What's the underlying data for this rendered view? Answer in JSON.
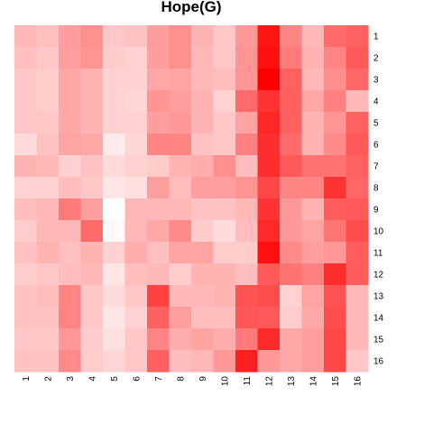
{
  "chart_data": {
    "type": "heatmap",
    "title": "Hope(G)",
    "xlabel": "",
    "ylabel": "",
    "x_labels": [
      "1",
      "2",
      "3",
      "4",
      "5",
      "6",
      "7",
      "8",
      "9",
      "10",
      "11",
      "12",
      "13",
      "14",
      "15",
      "16"
    ],
    "y_labels": [
      "1",
      "2",
      "3",
      "4",
      "5",
      "6",
      "7",
      "8",
      "9",
      "10",
      "11",
      "12",
      "13",
      "14",
      "15",
      "16"
    ],
    "value_range": [
      0,
      1
    ],
    "color_low": "#ffffff",
    "color_high": "#ff0000",
    "legend": "none",
    "grid": false,
    "values": [
      [
        0.28,
        0.25,
        0.38,
        0.44,
        0.22,
        0.24,
        0.38,
        0.44,
        0.3,
        0.22,
        0.4,
        0.92,
        0.48,
        0.28,
        0.58,
        0.62
      ],
      [
        0.25,
        0.22,
        0.38,
        0.42,
        0.2,
        0.18,
        0.38,
        0.44,
        0.28,
        0.22,
        0.42,
        0.94,
        0.52,
        0.3,
        0.48,
        0.65
      ],
      [
        0.22,
        0.2,
        0.35,
        0.3,
        0.18,
        0.18,
        0.35,
        0.36,
        0.28,
        0.26,
        0.42,
        1.0,
        0.62,
        0.28,
        0.44,
        0.6
      ],
      [
        0.22,
        0.2,
        0.35,
        0.3,
        0.18,
        0.16,
        0.42,
        0.38,
        0.3,
        0.18,
        0.58,
        0.8,
        0.62,
        0.35,
        0.5,
        0.28
      ],
      [
        0.22,
        0.22,
        0.35,
        0.3,
        0.18,
        0.18,
        0.38,
        0.4,
        0.3,
        0.22,
        0.36,
        0.85,
        0.62,
        0.3,
        0.42,
        0.62
      ],
      [
        0.14,
        0.24,
        0.36,
        0.34,
        0.08,
        0.16,
        0.48,
        0.48,
        0.24,
        0.22,
        0.5,
        0.82,
        0.58,
        0.3,
        0.46,
        0.65
      ],
      [
        0.3,
        0.28,
        0.18,
        0.24,
        0.14,
        0.18,
        0.2,
        0.3,
        0.32,
        0.44,
        0.26,
        0.82,
        0.65,
        0.55,
        0.55,
        0.62
      ],
      [
        0.18,
        0.18,
        0.26,
        0.22,
        0.1,
        0.12,
        0.38,
        0.26,
        0.38,
        0.38,
        0.42,
        0.72,
        0.48,
        0.48,
        0.8,
        0.6
      ],
      [
        0.26,
        0.28,
        0.52,
        0.38,
        0.0,
        0.28,
        0.28,
        0.28,
        0.24,
        0.24,
        0.28,
        0.8,
        0.4,
        0.3,
        0.64,
        0.65
      ],
      [
        0.2,
        0.28,
        0.28,
        0.58,
        0.02,
        0.28,
        0.34,
        0.46,
        0.2,
        0.14,
        0.26,
        0.84,
        0.4,
        0.36,
        0.54,
        0.7
      ],
      [
        0.24,
        0.3,
        0.25,
        0.3,
        0.18,
        0.32,
        0.25,
        0.36,
        0.36,
        0.2,
        0.2,
        0.94,
        0.46,
        0.38,
        0.4,
        0.64
      ],
      [
        0.2,
        0.22,
        0.26,
        0.28,
        0.1,
        0.26,
        0.28,
        0.2,
        0.3,
        0.3,
        0.26,
        0.65,
        0.55,
        0.5,
        0.82,
        0.64
      ],
      [
        0.24,
        0.26,
        0.48,
        0.22,
        0.14,
        0.22,
        0.74,
        0.28,
        0.28,
        0.3,
        0.68,
        0.7,
        0.18,
        0.36,
        0.68,
        0.28
      ],
      [
        0.24,
        0.24,
        0.48,
        0.22,
        0.1,
        0.18,
        0.62,
        0.38,
        0.26,
        0.26,
        0.66,
        0.65,
        0.2,
        0.34,
        0.7,
        0.28
      ],
      [
        0.22,
        0.22,
        0.4,
        0.2,
        0.12,
        0.22,
        0.48,
        0.32,
        0.36,
        0.32,
        0.52,
        0.84,
        0.34,
        0.38,
        0.72,
        0.28
      ],
      [
        0.24,
        0.24,
        0.46,
        0.2,
        0.16,
        0.22,
        0.62,
        0.26,
        0.28,
        0.4,
        0.88,
        0.4,
        0.34,
        0.38,
        0.72,
        0.22
      ]
    ]
  }
}
